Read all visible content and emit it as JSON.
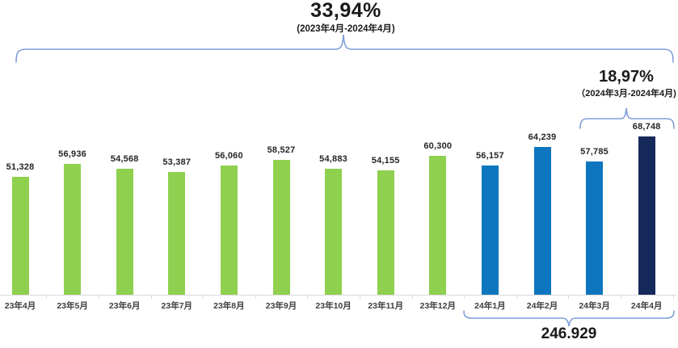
{
  "header": {
    "total_growth": "33,94%",
    "total_growth_period": "(2023年4月-2024年4月)"
  },
  "recent": {
    "growth": "18,97%",
    "growth_period": "（2024年3月-2024年4月)"
  },
  "footer": {
    "total_2024": "246.929"
  },
  "colors": {
    "green": "#8FD04F",
    "blue": "#0D76BE",
    "navy": "#16295B",
    "bracket": "#7F9FD8",
    "axis": "#D9D9D9",
    "value_label": "#262626",
    "category_label": "#3F3F3F"
  },
  "chart_data": {
    "type": "bar",
    "title": "33,94%",
    "subtitle": "(2023年4月-2024年4月)",
    "categories": [
      "23年4月",
      "23年5月",
      "23年6月",
      "23年7月",
      "23年8月",
      "23年9月",
      "23年10月",
      "23年11月",
      "23年12月",
      "24年1月",
      "24年2月",
      "24年3月",
      "24年4月"
    ],
    "values": [
      51328,
      56936,
      54568,
      53387,
      56060,
      58527,
      54883,
      54155,
      60300,
      56157,
      64239,
      57785,
      68748
    ],
    "value_labels": [
      "51,328",
      "56,936",
      "54,568",
      "53,387",
      "56,060",
      "58,527",
      "54,883",
      "54,155",
      "60,300",
      "56,157",
      "64,239",
      "57,785",
      "68,748"
    ],
    "bar_color_keys": [
      "green",
      "green",
      "green",
      "green",
      "green",
      "green",
      "green",
      "green",
      "green",
      "blue",
      "blue",
      "blue",
      "navy"
    ],
    "ylim": [
      0,
      70000
    ],
    "grid": false,
    "legend": false,
    "annotations": [
      {
        "text": "33,94%",
        "sub": "(2023年4月-2024年4月)",
        "span": [
          "23年4月",
          "24年4月"
        ],
        "position": "top"
      },
      {
        "text": "18,97%",
        "sub": "（2024年3月-2024年4月)",
        "span": [
          "24年3月",
          "24年4月"
        ],
        "position": "top-right"
      },
      {
        "text": "246.929",
        "span": [
          "24年1月",
          "24年4月"
        ],
        "position": "bottom"
      }
    ]
  }
}
